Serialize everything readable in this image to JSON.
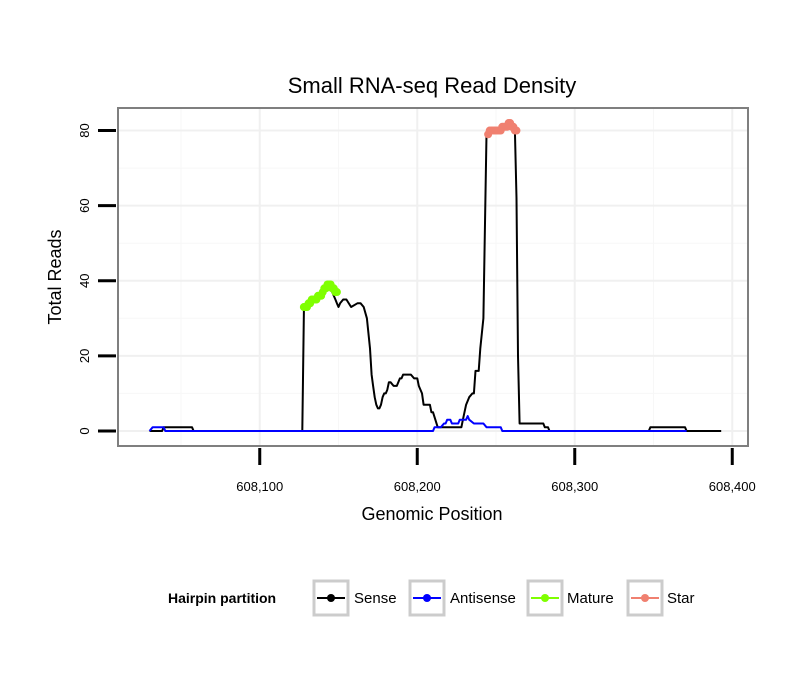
{
  "chart_data": {
    "type": "line",
    "title": "Small RNA-seq Read Density",
    "xlabel": "Genomic Position",
    "ylabel": "Total Reads",
    "xlim": [
      608010,
      608410
    ],
    "ylim": [
      -4,
      86
    ],
    "x_ticks": [
      608100,
      608200,
      608300,
      608400
    ],
    "x_tick_labels": [
      "608,100",
      "608,200",
      "608,300",
      "608,400"
    ],
    "y_ticks": [
      0,
      20,
      40,
      60,
      80
    ],
    "y_tick_labels": [
      "0",
      "20",
      "40",
      "60",
      "80"
    ],
    "grid": true,
    "legend": {
      "title": "Hairpin partition",
      "position": "bottom",
      "entries": [
        "Sense",
        "Antisense",
        "Mature",
        "Star"
      ]
    },
    "colors": {
      "Sense": "#000000",
      "Antisense": "#0000ff",
      "Mature": "#7fff00",
      "Star": "#f08070"
    },
    "series": [
      {
        "name": "Sense",
        "kind": "line",
        "x": [
          608030,
          608038,
          608039,
          608057,
          608058,
          608127,
          608128,
          608129,
          608130,
          608132,
          608134,
          608136,
          608138,
          608140,
          608142,
          608144,
          608146,
          608148,
          608149,
          608150,
          608151,
          608153,
          608155,
          608158,
          608162,
          608164,
          608166,
          608168,
          608170,
          608171,
          608172,
          608173,
          608174,
          608175,
          608176,
          608177,
          608178,
          608179,
          608180,
          608181,
          608182,
          608183,
          608185,
          608187,
          608189,
          608190,
          608191,
          608192,
          608193,
          608194,
          608196,
          608198,
          608200,
          608201,
          608203,
          608204,
          608205,
          608206,
          608207,
          608208,
          608209,
          608210,
          608213,
          608214,
          608215,
          608217,
          608219,
          608220,
          608228,
          608229,
          608231,
          608233,
          608235,
          608236,
          608237,
          608238,
          608239,
          608240,
          608242,
          608244,
          608245,
          608246,
          608247,
          608248,
          608250,
          608253,
          608256,
          608258,
          608260,
          608262,
          608263,
          608264,
          608265,
          608266,
          608267,
          608280,
          608281,
          608283,
          608284,
          608347,
          608348,
          608370,
          608371,
          608393
        ],
        "y": [
          0,
          0,
          1,
          1,
          0,
          0,
          32,
          33,
          33,
          34,
          35,
          35,
          36,
          37,
          38,
          38,
          37,
          35,
          34,
          33,
          34,
          35,
          35,
          33,
          34,
          34,
          33,
          30,
          22,
          15,
          12,
          9,
          7,
          6,
          6,
          7,
          9,
          10,
          10,
          11,
          13,
          13,
          12,
          12,
          14,
          14,
          15,
          15,
          15,
          15,
          15,
          14,
          14,
          12,
          10,
          7,
          7,
          7,
          7,
          7,
          5,
          5,
          1,
          1,
          1,
          1,
          1,
          1,
          1,
          3,
          7,
          9,
          10,
          10,
          16,
          16,
          16,
          22,
          30,
          79,
          80,
          80,
          80,
          80,
          80,
          81,
          81,
          82,
          81,
          80,
          62,
          20,
          2,
          2,
          2,
          2,
          1,
          1,
          0,
          0,
          1,
          1,
          0,
          0
        ]
      },
      {
        "name": "Antisense",
        "kind": "line",
        "x": [
          608030,
          608032,
          608039,
          608040,
          608057,
          608058,
          608209,
          608210,
          608211,
          608215,
          608217,
          608218,
          608219,
          608221,
          608222,
          608225,
          608226,
          608227,
          608230,
          608231,
          608232,
          608233,
          608236,
          608237,
          608238,
          608242,
          608244,
          608245,
          608253,
          608254,
          608371
        ],
        "y": [
          0,
          1,
          1,
          0,
          0,
          0,
          0,
          0,
          1,
          1,
          2,
          2,
          3,
          3,
          2,
          2,
          2,
          3,
          3,
          3,
          4,
          3,
          2,
          2,
          2,
          2,
          1,
          1,
          1,
          0,
          0
        ]
      },
      {
        "name": "Mature",
        "kind": "points",
        "x": [
          608128,
          608129,
          608130,
          608131,
          608132,
          608133,
          608134,
          608135,
          608136,
          608137,
          608138,
          608139,
          608140,
          608141,
          608142,
          608143,
          608144,
          608145,
          608146,
          608147,
          608148,
          608149
        ],
        "y": [
          33,
          33,
          33,
          34,
          34,
          35,
          35,
          35,
          35,
          36,
          36,
          36,
          37,
          38,
          38,
          39,
          39,
          39,
          38,
          38,
          37,
          37
        ]
      },
      {
        "name": "Star",
        "kind": "points",
        "x": [
          608245,
          608246,
          608247,
          608248,
          608249,
          608250,
          608251,
          608252,
          608253,
          608254,
          608255,
          608256,
          608257,
          608258,
          608259,
          608260,
          608261,
          608262,
          608263
        ],
        "y": [
          79,
          80,
          80,
          80,
          80,
          80,
          80,
          80,
          80,
          81,
          81,
          81,
          81,
          82,
          82,
          81,
          81,
          80,
          80
        ]
      }
    ]
  }
}
